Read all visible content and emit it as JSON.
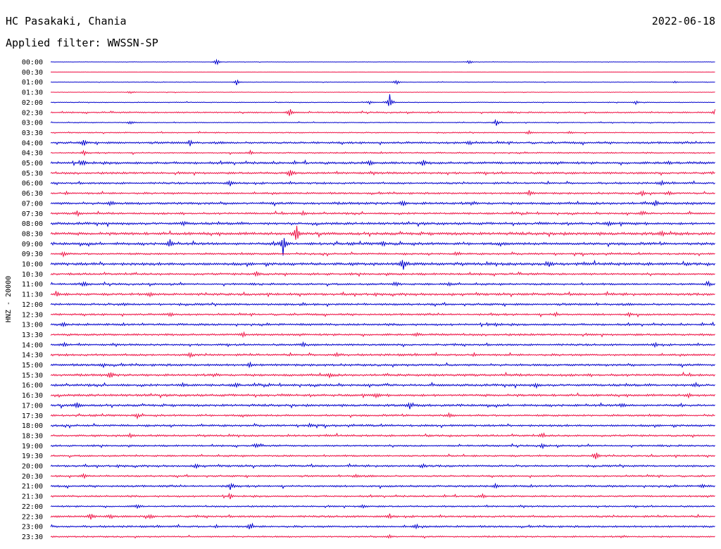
{
  "header": {
    "station": "HC Pasakaki, Chania",
    "date": "2022-06-18",
    "filter": "Applied filter: WWSSN-SP"
  },
  "chart_data": {
    "type": "line",
    "title": "HC Pasakaki, Chania",
    "subtitle": "Applied filter: WWSSN-SP",
    "date": "2022-06-18",
    "ylabel": "HNZ - 20000",
    "xlabel": "",
    "grid": false,
    "colors": [
      "#0000cc",
      "#ee1144"
    ],
    "rows": [
      {
        "label": "00:00",
        "amplitude": 0.2,
        "events": [
          {
            "x": 0.25,
            "amp": 6
          },
          {
            "x": 0.63,
            "amp": 3
          }
        ]
      },
      {
        "label": "00:30",
        "amplitude": 0.1,
        "events": []
      },
      {
        "label": "01:00",
        "amplitude": 0.3,
        "events": [
          {
            "x": 0.28,
            "amp": 5
          },
          {
            "x": 0.52,
            "amp": 4
          },
          {
            "x": 0.94,
            "amp": 2
          }
        ]
      },
      {
        "label": "01:30",
        "amplitude": 0.3,
        "events": [
          {
            "x": 0.12,
            "amp": 2
          }
        ]
      },
      {
        "label": "02:00",
        "amplitude": 0.4,
        "events": [
          {
            "x": 0.48,
            "amp": 3
          },
          {
            "x": 0.51,
            "amp": 12
          },
          {
            "x": 0.88,
            "amp": 3
          }
        ]
      },
      {
        "label": "02:30",
        "amplitude": 0.8,
        "events": [
          {
            "x": 0.36,
            "amp": 7
          },
          {
            "x": 1.0,
            "amp": 5
          }
        ]
      },
      {
        "label": "03:00",
        "amplitude": 0.5,
        "events": [
          {
            "x": 0.12,
            "amp": 3
          },
          {
            "x": 0.67,
            "amp": 5
          }
        ]
      },
      {
        "label": "03:30",
        "amplitude": 0.6,
        "events": [
          {
            "x": 0.72,
            "amp": 3
          },
          {
            "x": 0.78,
            "amp": 2
          }
        ]
      },
      {
        "label": "04:00",
        "amplitude": 1.2,
        "events": [
          {
            "x": 0.05,
            "amp": 4
          },
          {
            "x": 0.21,
            "amp": 4
          },
          {
            "x": 0.63,
            "amp": 3
          }
        ]
      },
      {
        "label": "04:30",
        "amplitude": 0.8,
        "events": [
          {
            "x": 0.05,
            "amp": 3
          },
          {
            "x": 0.3,
            "amp": 3
          }
        ]
      },
      {
        "label": "05:00",
        "amplitude": 1.4,
        "events": [
          {
            "x": 0.05,
            "amp": 4
          },
          {
            "x": 0.48,
            "amp": 3
          },
          {
            "x": 0.56,
            "amp": 4
          },
          {
            "x": 0.93,
            "amp": 3
          }
        ]
      },
      {
        "label": "05:30",
        "amplitude": 1.2,
        "events": [
          {
            "x": 0.36,
            "amp": 6
          }
        ]
      },
      {
        "label": "06:00",
        "amplitude": 1.1,
        "events": [
          {
            "x": 0.27,
            "amp": 4
          },
          {
            "x": 0.92,
            "amp": 3
          }
        ]
      },
      {
        "label": "06:30",
        "amplitude": 1.1,
        "events": [
          {
            "x": 0.72,
            "amp": 4
          },
          {
            "x": 0.89,
            "amp": 4
          },
          {
            "x": 0.93,
            "amp": 3
          }
        ]
      },
      {
        "label": "07:00",
        "amplitude": 1.4,
        "events": [
          {
            "x": 0.09,
            "amp": 3
          },
          {
            "x": 0.53,
            "amp": 4
          },
          {
            "x": 0.91,
            "amp": 4
          }
        ]
      },
      {
        "label": "07:30",
        "amplitude": 1.1,
        "events": [
          {
            "x": 0.04,
            "amp": 4
          },
          {
            "x": 0.38,
            "amp": 3
          },
          {
            "x": 0.89,
            "amp": 3
          }
        ]
      },
      {
        "label": "08:00",
        "amplitude": 1.4,
        "events": [
          {
            "x": 0.2,
            "amp": 3
          },
          {
            "x": 0.84,
            "amp": 3
          }
        ]
      },
      {
        "label": "08:30",
        "amplitude": 1.6,
        "events": [
          {
            "x": 0.37,
            "amp": 13
          },
          {
            "x": 0.92,
            "amp": 4
          }
        ]
      },
      {
        "label": "09:00",
        "amplitude": 1.5,
        "events": [
          {
            "x": 0.18,
            "amp": 6
          },
          {
            "x": 0.35,
            "amp": 20
          },
          {
            "x": 0.5,
            "amp": 3
          }
        ]
      },
      {
        "label": "09:30",
        "amplitude": 1.1,
        "events": [
          {
            "x": 0.02,
            "amp": 4
          },
          {
            "x": 0.61,
            "amp": 3
          }
        ]
      },
      {
        "label": "10:00",
        "amplitude": 1.6,
        "events": [
          {
            "x": 0.53,
            "amp": 10
          },
          {
            "x": 0.75,
            "amp": 3
          }
        ]
      },
      {
        "label": "10:30",
        "amplitude": 1.2,
        "events": [
          {
            "x": 0.31,
            "amp": 4
          }
        ]
      },
      {
        "label": "11:00",
        "amplitude": 1.1,
        "events": [
          {
            "x": 0.05,
            "amp": 4
          },
          {
            "x": 0.52,
            "amp": 4
          },
          {
            "x": 0.6,
            "amp": 3
          },
          {
            "x": 0.99,
            "amp": 3
          }
        ]
      },
      {
        "label": "11:30",
        "amplitude": 1.3,
        "events": [
          {
            "x": 0.01,
            "amp": 4
          },
          {
            "x": 0.15,
            "amp": 4
          }
        ]
      },
      {
        "label": "12:00",
        "amplitude": 1.2,
        "events": [
          {
            "x": 0.11,
            "amp": 2
          },
          {
            "x": 0.38,
            "amp": 2
          }
        ]
      },
      {
        "label": "12:30",
        "amplitude": 1.1,
        "events": [
          {
            "x": 0.18,
            "amp": 3
          },
          {
            "x": 0.76,
            "amp": 3
          },
          {
            "x": 0.87,
            "amp": 3
          }
        ]
      },
      {
        "label": "13:00",
        "amplitude": 1.2,
        "events": [
          {
            "x": 0.02,
            "amp": 3
          },
          {
            "x": 0.67,
            "amp": 3
          }
        ]
      },
      {
        "label": "13:30",
        "amplitude": 1.2,
        "events": [
          {
            "x": 0.29,
            "amp": 3
          },
          {
            "x": 0.55,
            "amp": 3
          }
        ]
      },
      {
        "label": "14:00",
        "amplitude": 1.1,
        "events": [
          {
            "x": 0.02,
            "amp": 3
          },
          {
            "x": 0.38,
            "amp": 3
          },
          {
            "x": 0.91,
            "amp": 3
          }
        ]
      },
      {
        "label": "14:30",
        "amplitude": 1.2,
        "events": [
          {
            "x": 0.21,
            "amp": 3
          },
          {
            "x": 0.43,
            "amp": 3
          }
        ]
      },
      {
        "label": "15:00",
        "amplitude": 1.3,
        "events": [
          {
            "x": 0.08,
            "amp": 3
          },
          {
            "x": 0.3,
            "amp": 3
          }
        ]
      },
      {
        "label": "15:30",
        "amplitude": 1.3,
        "events": [
          {
            "x": 0.09,
            "amp": 5
          },
          {
            "x": 0.42,
            "amp": 3
          }
        ]
      },
      {
        "label": "16:00",
        "amplitude": 1.3,
        "events": [
          {
            "x": 0.2,
            "amp": 3
          },
          {
            "x": 0.28,
            "amp": 3
          },
          {
            "x": 0.73,
            "amp": 3
          },
          {
            "x": 0.97,
            "amp": 3
          }
        ]
      },
      {
        "label": "16:30",
        "amplitude": 1.3,
        "events": [
          {
            "x": 0.49,
            "amp": 3
          },
          {
            "x": 0.96,
            "amp": 3
          }
        ]
      },
      {
        "label": "17:00",
        "amplitude": 1.3,
        "events": [
          {
            "x": 0.04,
            "amp": 4
          },
          {
            "x": 0.54,
            "amp": 5
          },
          {
            "x": 0.86,
            "amp": 3
          }
        ]
      },
      {
        "label": "17:30",
        "amplitude": 1.1,
        "events": [
          {
            "x": 0.13,
            "amp": 3
          },
          {
            "x": 0.6,
            "amp": 3
          }
        ]
      },
      {
        "label": "18:00",
        "amplitude": 1.2,
        "events": [
          {
            "x": 0.39,
            "amp": 3
          }
        ]
      },
      {
        "label": "18:30",
        "amplitude": 1.1,
        "events": [
          {
            "x": 0.12,
            "amp": 3
          },
          {
            "x": 0.74,
            "amp": 3
          }
        ]
      },
      {
        "label": "19:00",
        "amplitude": 1.0,
        "events": [
          {
            "x": 0.31,
            "amp": 4
          },
          {
            "x": 0.74,
            "amp": 3
          }
        ]
      },
      {
        "label": "19:30",
        "amplitude": 1.0,
        "events": [
          {
            "x": 0.82,
            "amp": 7
          }
        ]
      },
      {
        "label": "20:00",
        "amplitude": 1.1,
        "events": [
          {
            "x": 0.22,
            "amp": 3
          },
          {
            "x": 0.56,
            "amp": 3
          }
        ]
      },
      {
        "label": "20:30",
        "amplitude": 1.0,
        "events": [
          {
            "x": 0.05,
            "amp": 3
          },
          {
            "x": 0.46,
            "amp": 3
          }
        ]
      },
      {
        "label": "21:00",
        "amplitude": 1.1,
        "events": [
          {
            "x": 0.27,
            "amp": 5
          },
          {
            "x": 0.67,
            "amp": 3
          },
          {
            "x": 0.98,
            "amp": 3
          }
        ]
      },
      {
        "label": "21:30",
        "amplitude": 1.0,
        "events": [
          {
            "x": 0.27,
            "amp": 3
          },
          {
            "x": 0.65,
            "amp": 3
          }
        ]
      },
      {
        "label": "22:00",
        "amplitude": 0.9,
        "events": [
          {
            "x": 0.13,
            "amp": 4
          },
          {
            "x": 0.47,
            "amp": 3
          }
        ]
      },
      {
        "label": "22:30",
        "amplitude": 1.1,
        "events": [
          {
            "x": 0.06,
            "amp": 5
          },
          {
            "x": 0.09,
            "amp": 4
          },
          {
            "x": 0.15,
            "amp": 4
          },
          {
            "x": 0.51,
            "amp": 3
          }
        ]
      },
      {
        "label": "23:00",
        "amplitude": 1.1,
        "events": [
          {
            "x": 0.3,
            "amp": 5
          },
          {
            "x": 0.55,
            "amp": 3
          }
        ]
      },
      {
        "label": "23:30",
        "amplitude": 0.9,
        "events": [
          {
            "x": 0.51,
            "amp": 3
          }
        ]
      }
    ]
  }
}
